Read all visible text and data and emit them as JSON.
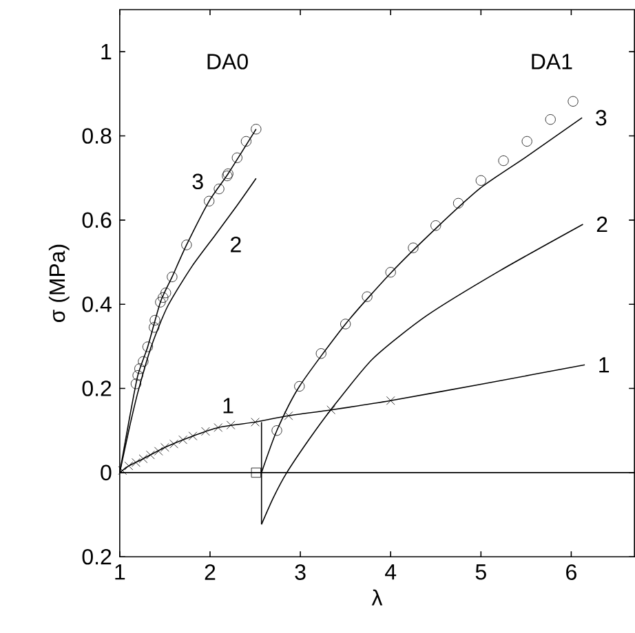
{
  "chart_data": {
    "type": "line",
    "xlabel": "λ",
    "ylabel": "σ   (MPa)",
    "xlim": [
      1,
      6.7
    ],
    "ylim": [
      -0.2,
      1.1
    ],
    "xticks": [
      1,
      2,
      3,
      4,
      5,
      6
    ],
    "yticks": [
      {
        "value": -0.2,
        "label": "0.2"
      },
      0,
      0.2,
      0.4,
      0.6,
      0.8,
      1
    ],
    "ref_lines": [
      {
        "axis": "y",
        "value": 0,
        "color": "#000000"
      }
    ],
    "series": [
      {
        "name": "3",
        "marker": "none",
        "color": "#000000",
        "x": [
          1,
          1.1,
          1.2,
          1.31,
          1.45,
          1.58,
          1.74,
          1.99,
          2.2,
          2.51
        ],
        "values": [
          0,
          0.12,
          0.231,
          0.299,
          0.405,
          0.465,
          0.541,
          0.645,
          0.71,
          0.816
        ]
      },
      {
        "type": "scatter",
        "marker": "circle",
        "color": "#000000",
        "x": [
          1.18,
          1.2,
          1.22,
          1.26,
          1.31,
          1.38,
          1.39,
          1.45,
          1.48,
          1.51,
          1.58,
          1.74,
          1.99,
          2.1,
          2.19,
          2.2,
          2.3,
          2.4,
          2.51
        ],
        "values": [
          0.211,
          0.231,
          0.247,
          0.264,
          0.299,
          0.345,
          0.362,
          0.405,
          0.416,
          0.427,
          0.465,
          0.541,
          0.645,
          0.674,
          0.705,
          0.71,
          0.748,
          0.787,
          0.816
        ]
      },
      {
        "name": "2",
        "marker": "none",
        "color": "#000000",
        "x": [
          1,
          1.1,
          1.2,
          1.35,
          1.53,
          1.8,
          2.06,
          2.3,
          2.51
        ],
        "values": [
          0,
          0.1,
          0.19,
          0.3,
          0.395,
          0.49,
          0.565,
          0.635,
          0.699
        ]
      },
      {
        "name": "1",
        "marker": "none",
        "color": "#000000",
        "x": [
          1,
          1.1,
          1.26,
          1.5,
          1.81,
          2.09,
          2.5
        ],
        "values": [
          0,
          0.016,
          0.033,
          0.06,
          0.087,
          0.107,
          0.12
        ]
      },
      {
        "type": "scatter",
        "marker": "cross",
        "color": "#000000",
        "x": [
          1.03,
          1.1,
          1.18,
          1.26,
          1.34,
          1.43,
          1.5,
          1.6,
          1.7,
          1.81,
          1.95,
          2.09,
          2.23,
          2.5,
          2.87,
          3.34,
          4.0
        ],
        "values": [
          0.005,
          0.016,
          0.024,
          0.033,
          0.042,
          0.051,
          0.06,
          0.068,
          0.078,
          0.087,
          0.098,
          0.107,
          0.113,
          0.12,
          0.135,
          0.149,
          0.171
        ]
      },
      {
        "type": "scatter",
        "marker": "square",
        "color": "#000000",
        "x": [
          2.51
        ],
        "values": [
          0
        ]
      },
      {
        "name": "1",
        "marker": "none",
        "color": "#000000",
        "x": [
          2.5,
          2.87,
          3.34,
          4.0,
          5.0,
          6.15
        ],
        "values": [
          0.12,
          0.135,
          0.149,
          0.171,
          0.21,
          0.256
        ]
      },
      {
        "marker": "none",
        "color": "#000000",
        "x": [
          2.57,
          2.57
        ],
        "values": [
          0.12,
          -0.123
        ]
      },
      {
        "name": "2",
        "marker": "none",
        "color": "#000000",
        "x": [
          2.57,
          2.7,
          2.85,
          3.1,
          3.34,
          3.8,
          4.4,
          5.22,
          6.13
        ],
        "values": [
          -0.123,
          -0.06,
          0,
          0.08,
          0.15,
          0.27,
          0.373,
          0.481,
          0.59
        ]
      },
      {
        "name": "3",
        "marker": "none",
        "color": "#000000",
        "x": [
          2.57,
          2.74,
          2.99,
          3.5,
          4.0,
          4.5,
          5.0,
          5.5,
          6.12
        ],
        "values": [
          0,
          0.1,
          0.205,
          0.353,
          0.474,
          0.58,
          0.677,
          0.75,
          0.843
        ]
      },
      {
        "type": "scatter",
        "marker": "circle",
        "color": "#000000",
        "x": [
          2.74,
          2.99,
          3.23,
          3.5,
          3.74,
          4.0,
          4.25,
          4.5,
          4.75,
          5.0,
          5.25,
          5.51,
          5.77,
          6.02
        ],
        "values": [
          0.1,
          0.205,
          0.283,
          0.353,
          0.418,
          0.476,
          0.534,
          0.587,
          0.64,
          0.694,
          0.741,
          0.787,
          0.839,
          0.882
        ]
      }
    ],
    "annotations": [
      "DA0",
      "DA1"
    ]
  }
}
